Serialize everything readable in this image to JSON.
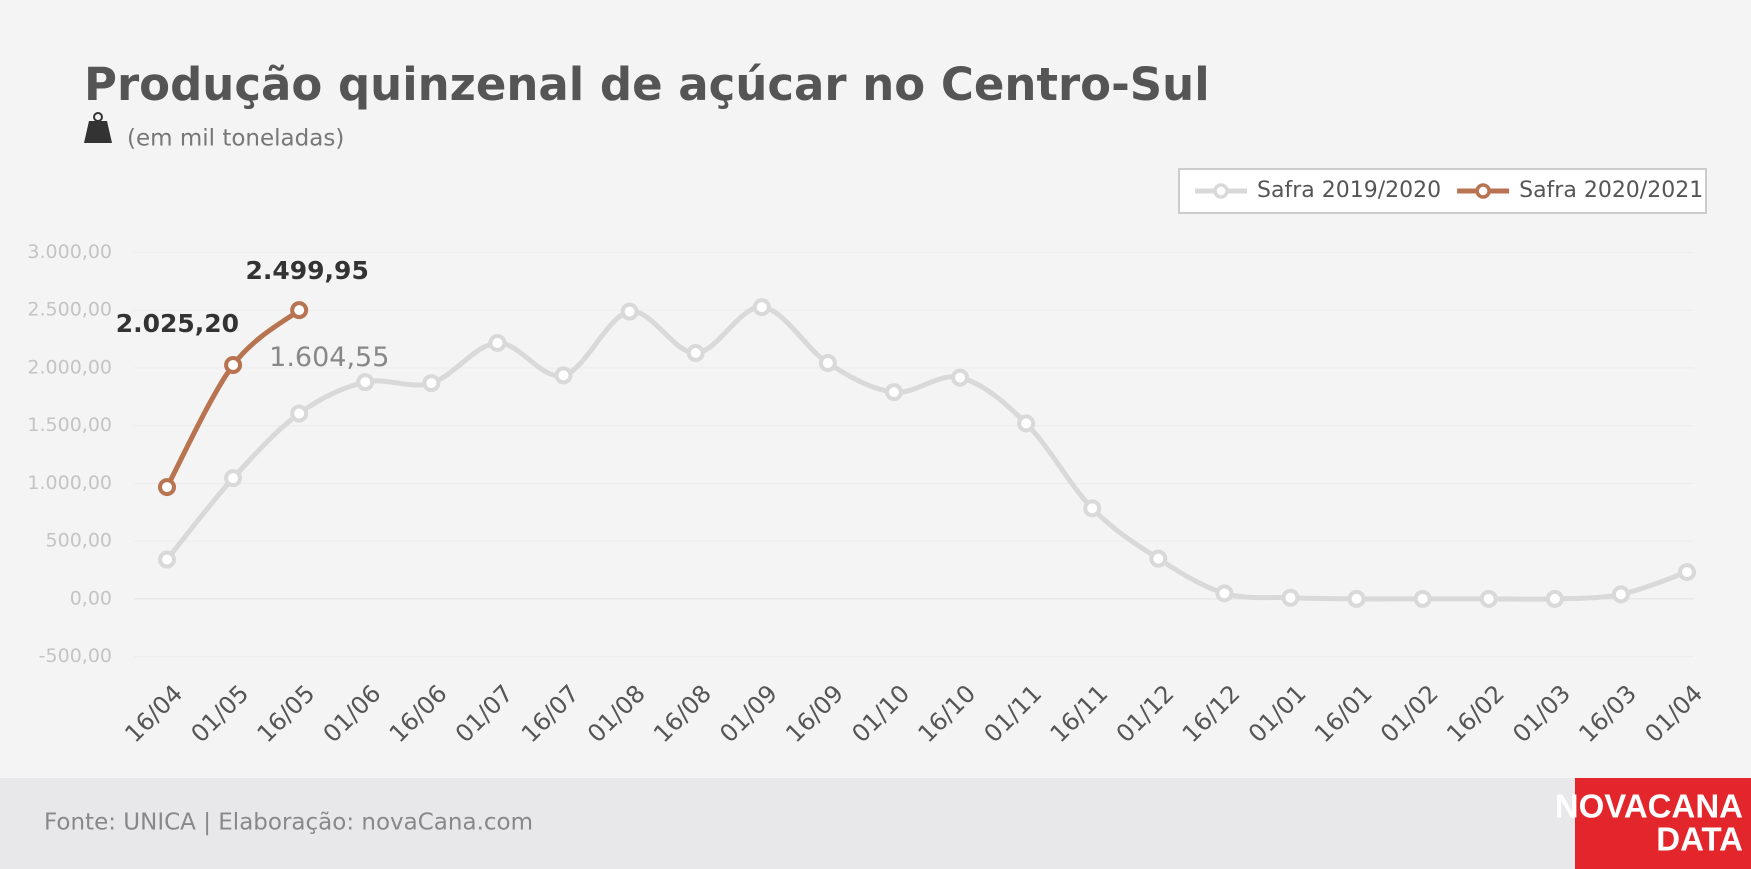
{
  "chart_data": {
    "type": "line",
    "title": "Produção quinzenal de açúcar no Centro-Sul",
    "subtitle": "(em mil toneladas)",
    "source": "Fonte: UNICA | Elaboração: novaCana.com",
    "brand": [
      "NOVACANA",
      "DATA"
    ],
    "categories": [
      "16/04",
      "01/05",
      "16/05",
      "01/06",
      "16/06",
      "01/07",
      "16/07",
      "01/08",
      "16/08",
      "01/09",
      "16/09",
      "01/10",
      "16/10",
      "01/11",
      "16/11",
      "01/12",
      "16/12",
      "01/01",
      "16/01",
      "01/02",
      "16/02",
      "01/03",
      "16/03",
      "01/04"
    ],
    "series": [
      {
        "name": "Safra 2019/2020",
        "color": "#d9d9d9",
        "values": [
          340,
          1045,
          1604.55,
          1877,
          1868,
          2216,
          1935,
          2487,
          2129,
          2526,
          2042,
          1790,
          1916,
          1519,
          784,
          348,
          48,
          10,
          0,
          0,
          0,
          0,
          39,
          232
        ],
        "value_labels": [
          null,
          null,
          "1.604,55",
          null,
          null,
          null,
          null,
          null,
          null,
          null,
          null,
          null,
          null,
          null,
          null,
          null,
          null,
          null,
          null,
          null,
          null,
          null,
          null,
          null
        ]
      },
      {
        "name": "Safra 2020/2021",
        "color": "#b87350",
        "values": [
          968,
          2025.2,
          2499.95,
          null,
          null,
          null,
          null,
          null,
          null,
          null,
          null,
          null,
          null,
          null,
          null,
          null,
          null,
          null,
          null,
          null,
          null,
          null,
          null,
          null
        ],
        "value_labels": [
          null,
          "2.025,20",
          "2.499,95",
          null,
          null,
          null,
          null,
          null,
          null,
          null,
          null,
          null,
          null,
          null,
          null,
          null,
          null,
          null,
          null,
          null,
          null,
          null,
          null,
          null
        ]
      }
    ],
    "ylim": [
      -500,
      3000
    ],
    "yticks": [
      {
        "value": -500,
        "label": "-500,00"
      },
      {
        "value": 0,
        "label": "0,00"
      },
      {
        "value": 500,
        "label": "500,00"
      },
      {
        "value": 1000,
        "label": "1.000,00"
      },
      {
        "value": 1500,
        "label": "1.500,00"
      },
      {
        "value": 2000,
        "label": "2.000,00"
      },
      {
        "value": 2500,
        "label": "2.500,00"
      },
      {
        "value": 3000,
        "label": "3.000,00"
      }
    ],
    "grid": true,
    "legend": "top-right"
  }
}
